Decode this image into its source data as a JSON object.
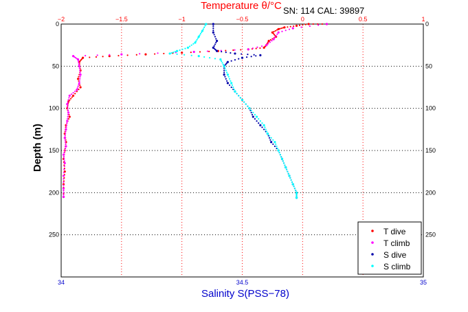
{
  "chart_data": {
    "type": "scatter",
    "title": "Temperature θ/°C",
    "annotation": "SN: 114  CAL: 39897",
    "xlabel_bottom": "Salinity S(PSS−78)",
    "xlabel_top": "Temperature θ/°C",
    "ylabel": "Depth (m)",
    "x_temp_range": [
      -2,
      1
    ],
    "x_sal_range": [
      34,
      35
    ],
    "y_range": [
      0,
      300
    ],
    "y_reversed": true,
    "grid": true,
    "legend_position": "bottom-right",
    "colors": {
      "temperature_axis": "#ff0000",
      "salinity_axis": "#0000cc",
      "t_dive": "#ff0000",
      "t_climb": "#ff00ff",
      "s_dive": "#0000aa",
      "s_climb": "#00ffff"
    },
    "ticks": {
      "top": [
        "−2",
        "−1.5",
        "−1",
        "−0.5",
        "0",
        "0.5",
        "1"
      ],
      "bottom": [
        "34",
        "34.5",
        "35"
      ],
      "left": [
        "0",
        "50",
        "100",
        "150",
        "200",
        "250"
      ],
      "right": [
        "0",
        "50",
        "100",
        "150",
        "200",
        "250"
      ]
    },
    "series": [
      {
        "name": "T dive",
        "axis": "temperature",
        "points": [
          [
            0.2,
            0
          ],
          [
            0.05,
            0
          ],
          [
            -0.05,
            2
          ],
          [
            -0.15,
            4
          ],
          [
            -0.2,
            6
          ],
          [
            -0.25,
            10
          ],
          [
            -0.22,
            15
          ],
          [
            -0.28,
            20
          ],
          [
            -0.3,
            25
          ],
          [
            -0.32,
            28
          ],
          [
            -0.45,
            30
          ],
          [
            -0.7,
            32
          ],
          [
            -1.0,
            34
          ],
          [
            -1.3,
            36
          ],
          [
            -1.6,
            38
          ],
          [
            -1.82,
            40
          ],
          [
            -1.85,
            45
          ],
          [
            -1.84,
            55
          ],
          [
            -1.86,
            65
          ],
          [
            -1.84,
            75
          ],
          [
            -1.9,
            85
          ],
          [
            -1.94,
            92
          ],
          [
            -1.95,
            100
          ],
          [
            -1.93,
            110
          ],
          [
            -1.96,
            120
          ],
          [
            -1.97,
            130
          ],
          [
            -1.96,
            140
          ],
          [
            -1.97,
            150
          ],
          [
            -1.98,
            160
          ],
          [
            -1.97,
            175
          ],
          [
            -1.98,
            190
          ],
          [
            -1.98,
            205
          ]
        ]
      },
      {
        "name": "T climb",
        "axis": "temperature",
        "points": [
          [
            0.2,
            0
          ],
          [
            -0.08,
            5
          ],
          [
            -0.2,
            10
          ],
          [
            -0.24,
            18
          ],
          [
            -0.3,
            25
          ],
          [
            -0.45,
            30
          ],
          [
            -0.9,
            33
          ],
          [
            -1.5,
            36
          ],
          [
            -1.9,
            38
          ],
          [
            -1.86,
            42
          ],
          [
            -1.85,
            50
          ],
          [
            -1.84,
            60
          ],
          [
            -1.85,
            70
          ],
          [
            -1.87,
            78
          ],
          [
            -1.93,
            85
          ],
          [
            -1.95,
            95
          ],
          [
            -1.94,
            105
          ],
          [
            -1.95,
            115
          ],
          [
            -1.96,
            125
          ],
          [
            -1.97,
            135
          ],
          [
            -1.96,
            145
          ],
          [
            -1.98,
            155
          ],
          [
            -1.97,
            165
          ],
          [
            -1.98,
            180
          ],
          [
            -1.98,
            195
          ],
          [
            -1.98,
            205
          ]
        ]
      },
      {
        "name": "S dive",
        "axis": "salinity",
        "points": [
          [
            34.42,
            0
          ],
          [
            34.42,
            10
          ],
          [
            34.43,
            20
          ],
          [
            34.42,
            28
          ],
          [
            34.43,
            32
          ],
          [
            34.48,
            35
          ],
          [
            34.55,
            37
          ],
          [
            34.5,
            40
          ],
          [
            34.46,
            45
          ],
          [
            34.45,
            50
          ],
          [
            34.45,
            60
          ],
          [
            34.46,
            70
          ],
          [
            34.48,
            80
          ],
          [
            34.5,
            90
          ],
          [
            34.52,
            100
          ],
          [
            34.53,
            110
          ],
          [
            34.55,
            120
          ],
          [
            34.57,
            130
          ],
          [
            34.58,
            140
          ],
          [
            34.6,
            150
          ],
          [
            34.61,
            160
          ],
          [
            34.62,
            170
          ],
          [
            34.63,
            180
          ],
          [
            34.64,
            190
          ],
          [
            34.65,
            200
          ],
          [
            34.65,
            206
          ]
        ]
      },
      {
        "name": "S climb",
        "axis": "salinity",
        "points": [
          [
            34.4,
            0
          ],
          [
            34.39,
            8
          ],
          [
            34.38,
            15
          ],
          [
            34.37,
            22
          ],
          [
            34.35,
            28
          ],
          [
            34.32,
            32
          ],
          [
            34.3,
            35
          ],
          [
            34.38,
            38
          ],
          [
            34.44,
            42
          ],
          [
            34.45,
            50
          ],
          [
            34.46,
            60
          ],
          [
            34.47,
            70
          ],
          [
            34.48,
            80
          ],
          [
            34.5,
            90
          ],
          [
            34.52,
            100
          ],
          [
            34.54,
            110
          ],
          [
            34.56,
            120
          ],
          [
            34.57,
            130
          ],
          [
            34.59,
            140
          ],
          [
            34.6,
            150
          ],
          [
            34.61,
            160
          ],
          [
            34.62,
            170
          ],
          [
            34.63,
            180
          ],
          [
            34.64,
            190
          ],
          [
            34.65,
            200
          ],
          [
            34.65,
            206
          ]
        ]
      }
    ]
  }
}
